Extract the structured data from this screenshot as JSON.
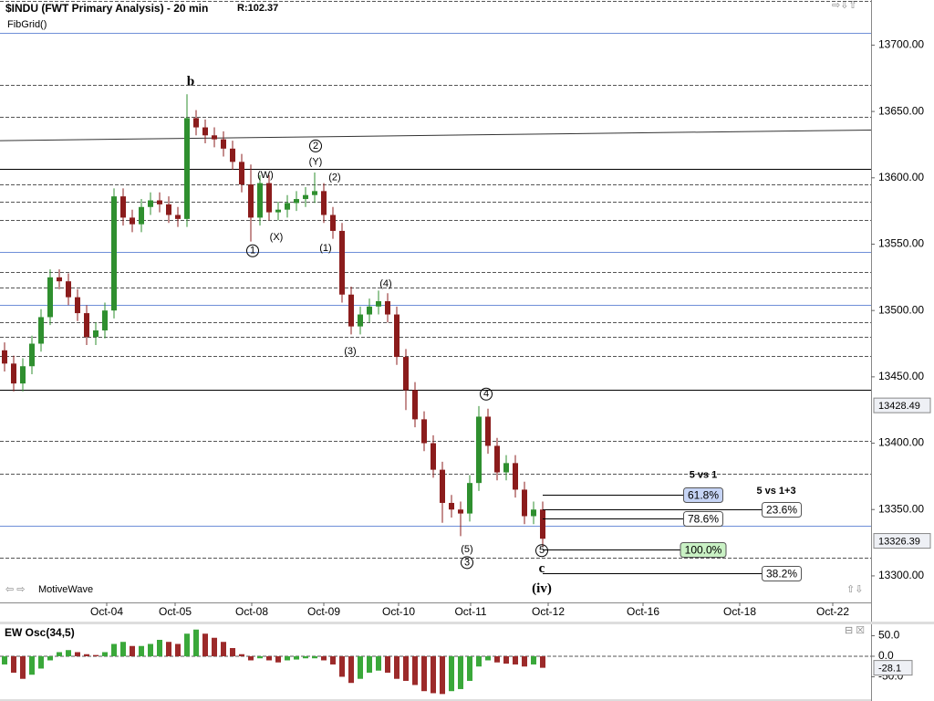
{
  "chart_data": [
    {
      "type": "candlestick",
      "title": "$INDU (FWT Primary Analysis) - 20 min",
      "subtitle": "R:102.37",
      "study": "FibGrid()",
      "footer": "MotiveWave",
      "x": [
        0,
        1,
        2,
        3,
        4,
        5,
        6,
        7,
        8,
        9,
        10,
        11,
        12,
        13,
        14,
        15,
        16,
        17,
        18,
        19,
        20,
        21,
        22,
        23,
        24,
        25,
        26,
        27,
        28,
        29,
        30,
        31,
        32,
        33,
        34,
        35,
        36,
        37,
        38,
        39,
        40,
        41,
        42,
        43,
        44,
        45,
        46,
        47,
        48,
        49,
        50,
        51,
        52,
        53,
        54,
        55,
        56,
        57,
        58,
        59
      ],
      "open": [
        13470,
        13460,
        13445,
        13458,
        13475,
        13495,
        13525,
        13522,
        13510,
        13498,
        13480,
        13485,
        13500,
        13586,
        13570,
        13565,
        13578,
        13583,
        13580,
        13572,
        13569,
        13645,
        13638,
        13632,
        13629,
        13622,
        13612,
        13595,
        13570,
        13596,
        13574,
        13576,
        13581,
        13584,
        13587,
        13590,
        13572,
        13560,
        13512,
        13488,
        13497,
        13503,
        13507,
        13497,
        13465,
        13440,
        13418,
        13400,
        13380,
        13355,
        13350,
        13347,
        13370,
        13420,
        13398,
        13378,
        13385,
        13365,
        13345,
        13350
      ],
      "high": [
        13476,
        13466,
        13464,
        13481,
        13501,
        13531,
        13531,
        13528,
        13516,
        13504,
        13491,
        13506,
        13592,
        13592,
        13576,
        13584,
        13589,
        13589,
        13586,
        13578,
        13663,
        13651,
        13644,
        13638,
        13635,
        13628,
        13618,
        13610,
        13602,
        13602,
        13582,
        13587,
        13590,
        13593,
        13604,
        13596,
        13578,
        13566,
        13518,
        13503,
        13509,
        13515,
        13513,
        13503,
        13471,
        13446,
        13424,
        13406,
        13386,
        13361,
        13356,
        13376,
        13428,
        13426,
        13404,
        13391,
        13391,
        13371,
        13356,
        13356
      ],
      "low": [
        13454,
        13439,
        13439,
        13452,
        13469,
        13489,
        13516,
        13504,
        13492,
        13474,
        13474,
        13479,
        13494,
        13564,
        13559,
        13559,
        13572,
        13574,
        13566,
        13563,
        13563,
        13632,
        13626,
        13623,
        13616,
        13606,
        13589,
        13552,
        13564,
        13568,
        13568,
        13570,
        13575,
        13578,
        13581,
        13566,
        13554,
        13506,
        13482,
        13482,
        13491,
        13497,
        13491,
        13459,
        13425,
        13412,
        13394,
        13374,
        13340,
        13344,
        13330,
        13341,
        13364,
        13392,
        13372,
        13372,
        13359,
        13339,
        13339,
        13322
      ],
      "close": [
        13460,
        13445,
        13458,
        13475,
        13495,
        13525,
        13522,
        13510,
        13498,
        13480,
        13485,
        13500,
        13586,
        13570,
        13565,
        13578,
        13583,
        13580,
        13572,
        13569,
        13645,
        13638,
        13632,
        13629,
        13622,
        13612,
        13595,
        13570,
        13596,
        13574,
        13576,
        13581,
        13584,
        13587,
        13590,
        13572,
        13560,
        13512,
        13488,
        13497,
        13503,
        13507,
        13497,
        13465,
        13440,
        13418,
        13400,
        13380,
        13355,
        13350,
        13347,
        13370,
        13420,
        13398,
        13378,
        13385,
        13365,
        13345,
        13350,
        13328
      ],
      "up_color": "#2f8f2f",
      "down_color": "#8b1c1c",
      "xlim": [
        -0.5,
        95
      ],
      "ylim": [
        13280,
        13734
      ],
      "xticks": [
        {
          "value": 11.2,
          "label": "Oct-04"
        },
        {
          "value": 18.7,
          "label": "Oct-05"
        },
        {
          "value": 27.1,
          "label": "Oct-08"
        },
        {
          "value": 35,
          "label": "Oct-09"
        },
        {
          "value": 43.2,
          "label": "Oct-10"
        },
        {
          "value": 51.1,
          "label": "Oct-11"
        },
        {
          "value": 59.6,
          "label": "Oct-12"
        },
        {
          "value": 70,
          "label": "Oct-16"
        },
        {
          "value": 80.6,
          "label": "Oct-18"
        },
        {
          "value": 90.8,
          "label": "Oct-22"
        }
      ],
      "yticks": [
        {
          "value": 13300,
          "label": "13300.00"
        },
        {
          "value": 13350,
          "label": "13350.00"
        },
        {
          "value": 13400,
          "label": "13400.00"
        },
        {
          "value": 13450,
          "label": "13450.00"
        },
        {
          "value": 13500,
          "label": "13500.00"
        },
        {
          "value": 13550,
          "label": "13550.00"
        },
        {
          "value": 13600,
          "label": "13600.00"
        },
        {
          "value": 13650,
          "label": "13650.00"
        },
        {
          "value": 13700,
          "label": "13700.00"
        }
      ],
      "levels": [
        {
          "value": 13733,
          "color": "#555555",
          "dash": true
        },
        {
          "value": 13709,
          "color": "#6f8fd8",
          "dash": false
        },
        {
          "value": 13670,
          "color": "#555555",
          "dash": true
        },
        {
          "value": 13646,
          "color": "#555555",
          "dash": true
        },
        {
          "value": 13607,
          "color": "#000000",
          "dash": false
        },
        {
          "value": 13595,
          "color": "#555555",
          "dash": true
        },
        {
          "value": 13582,
          "color": "#555555",
          "dash": true
        },
        {
          "value": 13568,
          "color": "#555555",
          "dash": true
        },
        {
          "value": 13544,
          "color": "#6f8fd8",
          "dash": false
        },
        {
          "value": 13529,
          "color": "#555555",
          "dash": true
        },
        {
          "value": 13517,
          "color": "#555555",
          "dash": true
        },
        {
          "value": 13504,
          "color": "#6f8fd8",
          "dash": false
        },
        {
          "value": 13491,
          "color": "#555555",
          "dash": true
        },
        {
          "value": 13480,
          "color": "#555555",
          "dash": true
        },
        {
          "value": 13466,
          "color": "#555555",
          "dash": true
        },
        {
          "value": 13440,
          "color": "#000000",
          "dash": false
        },
        {
          "value": 13402,
          "color": "#555555",
          "dash": true
        },
        {
          "value": 13377,
          "color": "#555555",
          "dash": true
        },
        {
          "value": 13338,
          "color": "#6f8fd8",
          "dash": false
        },
        {
          "value": 13314,
          "color": "#555555",
          "dash": true
        }
      ],
      "trendline": {
        "x": [
          -0.5,
          95
        ],
        "y": [
          13628,
          13636
        ]
      },
      "annotations": [
        {
          "text": "b",
          "x": 20.4,
          "y": 13672,
          "serif": true
        },
        {
          "text": "(W)",
          "x": 28.6,
          "y": 13602
        },
        {
          "text": "2",
          "x": 34.1,
          "y": 13624,
          "circled": true
        },
        {
          "text": "(Y)",
          "x": 34.1,
          "y": 13612
        },
        {
          "text": "(2)",
          "x": 36.2,
          "y": 13600
        },
        {
          "text": "1",
          "x": 27.2,
          "y": 13545,
          "circled": true
        },
        {
          "text": "(X)",
          "x": 29.8,
          "y": 13555
        },
        {
          "text": "(1)",
          "x": 35.2,
          "y": 13547
        },
        {
          "text": "(4)",
          "x": 41.8,
          "y": 13520
        },
        {
          "text": "(3)",
          "x": 37.9,
          "y": 13469
        },
        {
          "text": "4",
          "x": 52.8,
          "y": 13437,
          "circled": true
        },
        {
          "text": "(5)",
          "x": 50.7,
          "y": 13320
        },
        {
          "text": "3",
          "x": 50.7,
          "y": 13310,
          "circled": true
        },
        {
          "text": "5",
          "x": 58.9,
          "y": 13319,
          "circled": true
        },
        {
          "text": "c",
          "x": 58.9,
          "y": 13305,
          "serif": true
        },
        {
          "text": "(iv)",
          "x": 58.9,
          "y": 13290,
          "serif": true
        }
      ],
      "fib_headers": [
        {
          "text": "5 vs 1",
          "x": 76.6,
          "y": 13376
        },
        {
          "text": "5 vs 1+3",
          "x": 84.6,
          "y": 13364
        }
      ],
      "fib_ratios": [
        {
          "label": "61.8%",
          "value": 13361,
          "x": 76.6,
          "color": "#c6d4f5"
        },
        {
          "label": "23.6%",
          "value": 13350,
          "x": 85.2,
          "color": "#ffffff"
        },
        {
          "label": "78.6%",
          "value": 13343,
          "x": 76.6,
          "color": "#ffffff"
        },
        {
          "label": "100.0%",
          "value": 13320,
          "x": 76.6,
          "color": "#c9f1c4"
        },
        {
          "label": "38.2%",
          "value": 13302,
          "x": 85.2,
          "color": "#ffffff"
        }
      ],
      "fib_start": 59,
      "price_labels": [
        13428.49,
        13326.39
      ]
    },
    {
      "type": "oscillator",
      "title": "EW Osc(34,5)",
      "values": [
        -20,
        -40,
        -55,
        -45,
        -30,
        -10,
        10,
        15,
        10,
        5,
        3,
        10,
        30,
        35,
        25,
        25,
        30,
        40,
        35,
        30,
        55,
        65,
        55,
        45,
        35,
        20,
        5,
        -10,
        -5,
        -10,
        -15,
        -10,
        -8,
        -5,
        -5,
        -10,
        -20,
        -50,
        -65,
        -55,
        -40,
        -35,
        -40,
        -55,
        -60,
        -70,
        -85,
        -90,
        -92,
        -85,
        -80,
        -60,
        -25,
        -10,
        -15,
        -18,
        -20,
        -25,
        -20,
        -28.1
      ],
      "up_color": "#3aa83a",
      "down_color": "#9c2a2a",
      "ylim": [
        -109,
        80
      ],
      "yticks": [
        {
          "value": 50,
          "label": "50.0"
        },
        {
          "value": 0,
          "label": "0.0"
        },
        {
          "value": -50,
          "label": "-50.0"
        }
      ]
    }
  ]
}
